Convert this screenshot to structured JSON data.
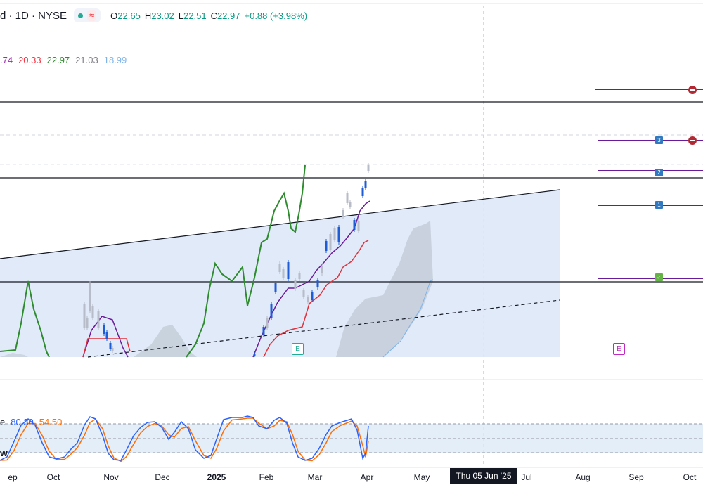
{
  "header": {
    "title": "d · 1D · NYSE",
    "open_label": "O",
    "open": "22.65",
    "high_label": "H",
    "high": "23.02",
    "low_label": "L",
    "low": "22.51",
    "close_label": "C",
    "close": "22.97",
    "change": "+0.88 (+3.98%)"
  },
  "indicator_values": [
    {
      "text": ".74",
      "color": "#9c27b0"
    },
    {
      "text": "20.33",
      "color": "#f23645"
    },
    {
      "text": "22.97",
      "color": "#2e8b2e"
    },
    {
      "text": "21.03",
      "color": "#7f8088"
    },
    {
      "text": "18.99",
      "color": "#7fb3e8"
    }
  ],
  "stochastic": {
    "name_fragment": "e",
    "k": "80.30",
    "d": "54.50",
    "bottom_fragment": "w"
  },
  "x_axis": {
    "ticks": [
      {
        "label": "ep",
        "bold": false
      },
      {
        "label": "Oct",
        "bold": false
      },
      {
        "label": "Nov",
        "bold": false
      },
      {
        "label": "Dec",
        "bold": false
      },
      {
        "label": "2025",
        "bold": true
      },
      {
        "label": "Feb",
        "bold": false
      },
      {
        "label": "Mar",
        "bold": false
      },
      {
        "label": "Apr",
        "bold": false
      },
      {
        "label": "May",
        "bold": false
      },
      {
        "label": "Jul",
        "bold": false
      },
      {
        "label": "Aug",
        "bold": false
      },
      {
        "label": "Sep",
        "bold": false
      },
      {
        "label": "Oct",
        "bold": false
      }
    ],
    "crosshair_label": "Thu 05 Jun '25"
  },
  "markers": {
    "tag_labels": [
      "3",
      "2",
      "1",
      "✓"
    ],
    "earnings_label": "E"
  },
  "colors": {
    "green_line": "#2e8b2e",
    "purple_line": "#6a1b9a",
    "red_line": "#e0303a",
    "cloud_fill": "#b7bfc9",
    "channel_fill": "#dde8f8",
    "stoch_k": "#2962ff",
    "stoch_d": "#ff6d00",
    "bull_candle": "#1e5bd6",
    "bear_candle": "#b8bcc8"
  },
  "chart_data": {
    "type": "line",
    "x": [
      "ep",
      "Oct",
      "Nov",
      "Dec",
      "2025",
      "Feb",
      "Mar",
      "Apr",
      "May",
      "Jul",
      "Aug",
      "Sep",
      "Oct"
    ],
    "ohlc_last": {
      "open": 22.65,
      "high": 23.02,
      "low": 22.51,
      "close": 22.97
    }
  }
}
